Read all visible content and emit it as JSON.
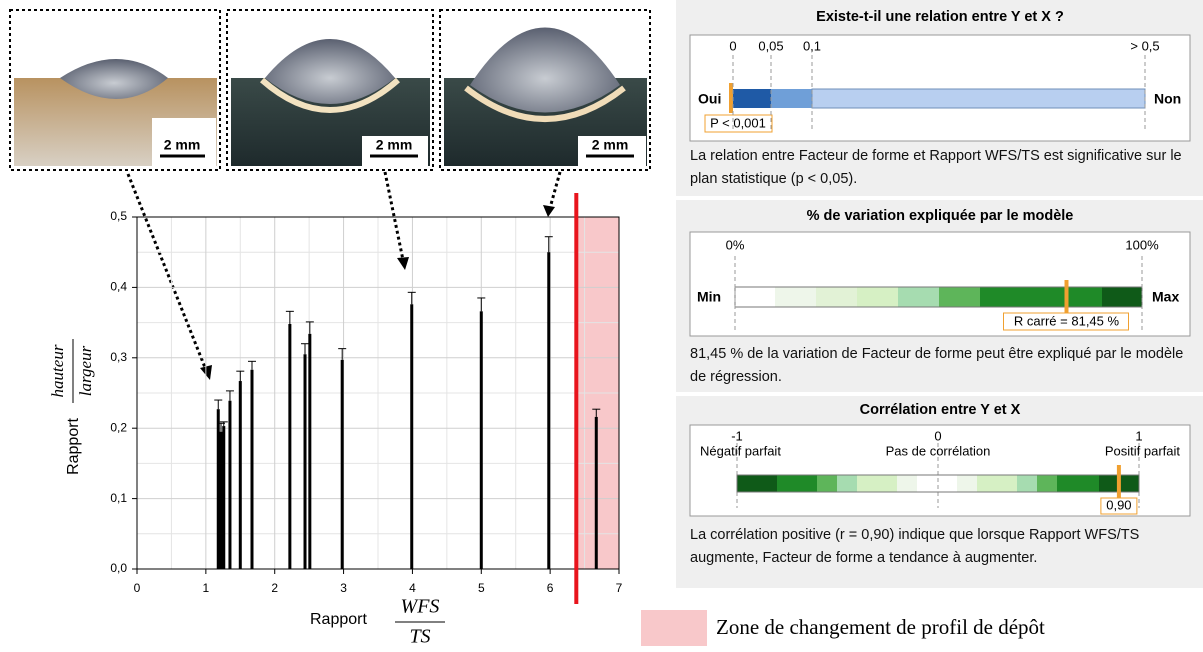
{
  "chart_data": {
    "type": "bar",
    "ylabel": {
      "text": "Rapport",
      "numerator": "hauteur",
      "denominator": "largeur"
    },
    "xlabel": {
      "text": "Rapport",
      "numerator": "WFS",
      "denominator": "TS"
    },
    "x": [
      1.18,
      1.22,
      1.26,
      1.35,
      1.5,
      1.67,
      2.22,
      2.44,
      2.51,
      2.98,
      3.99,
      5.0,
      5.98,
      6.67
    ],
    "values": [
      0.227,
      0.195,
      0.203,
      0.239,
      0.267,
      0.283,
      0.348,
      0.305,
      0.334,
      0.297,
      0.376,
      0.366,
      0.45,
      0.216
    ],
    "errors": [
      0.013,
      0.012,
      0.006,
      0.014,
      0.014,
      0.012,
      0.018,
      0.015,
      0.017,
      0.016,
      0.017,
      0.019,
      0.022,
      0.011
    ],
    "color": "#000000",
    "xlim": [
      0,
      7
    ],
    "xticks": [
      0,
      1,
      2,
      3,
      4,
      5,
      6,
      7
    ],
    "ylim": [
      0,
      0.5
    ],
    "yticks": [
      {
        "value": 0,
        "label": "0,0"
      },
      {
        "value": 0.1,
        "label": "0,1"
      },
      {
        "value": 0.2,
        "label": "0,2"
      },
      {
        "value": 0.3,
        "label": "0,3"
      },
      {
        "value": 0.4,
        "label": "0,4"
      },
      {
        "value": 0.5,
        "label": "0,5"
      }
    ],
    "grid": true,
    "threshold": {
      "x": 6.38,
      "color": "#e8141c"
    },
    "zone": {
      "from": 6.38,
      "to": 7,
      "color": "#f8c8ca",
      "label": "Zone de changement de profil de dépôt"
    }
  },
  "images": [
    {
      "scale_label": "2 mm"
    },
    {
      "scale_label": "2 mm"
    },
    {
      "scale_label": "2 mm"
    }
  ],
  "panels": [
    {
      "title": "Existe-t-il une relation entre Y et X ?",
      "ticks": [
        {
          "value": 0,
          "label": "0"
        },
        {
          "value": 0.05,
          "label": "0,05"
        },
        {
          "value": 0.1,
          "label": "0,1"
        },
        {
          "value": 0.5,
          "label": "> 0,5"
        }
      ],
      "left": "Oui",
      "right": "Non",
      "marker_label": "P < 0,001",
      "description": "La relation entre Facteur de forme et Rapport WFS/TS est significative sur le plan statistique (p < 0,05)."
    },
    {
      "title": "% de variation expliquée par le modèle",
      "ticks": [
        {
          "value": 0,
          "label": "0%"
        },
        {
          "value": 100,
          "label": "100%"
        }
      ],
      "left": "Min",
      "right": "Max",
      "value": 81.45,
      "value_label": "R carré = 81,45 %",
      "description": "81,45 % de la variation de Facteur de forme peut être expliqué par le modèle de régression."
    },
    {
      "title": "Corrélation entre Y et X",
      "ticks": [
        -1,
        0,
        1
      ],
      "tick_captions": [
        "Négatif parfait",
        "Pas de corrélation",
        "Positif parfait"
      ],
      "value": 0.9,
      "value_label": "0,90",
      "description": "La corrélation positive (r = 0,90) indique que lorsque Rapport WFS/TS augmente, Facteur de forme a tendance à augmenter."
    }
  ]
}
